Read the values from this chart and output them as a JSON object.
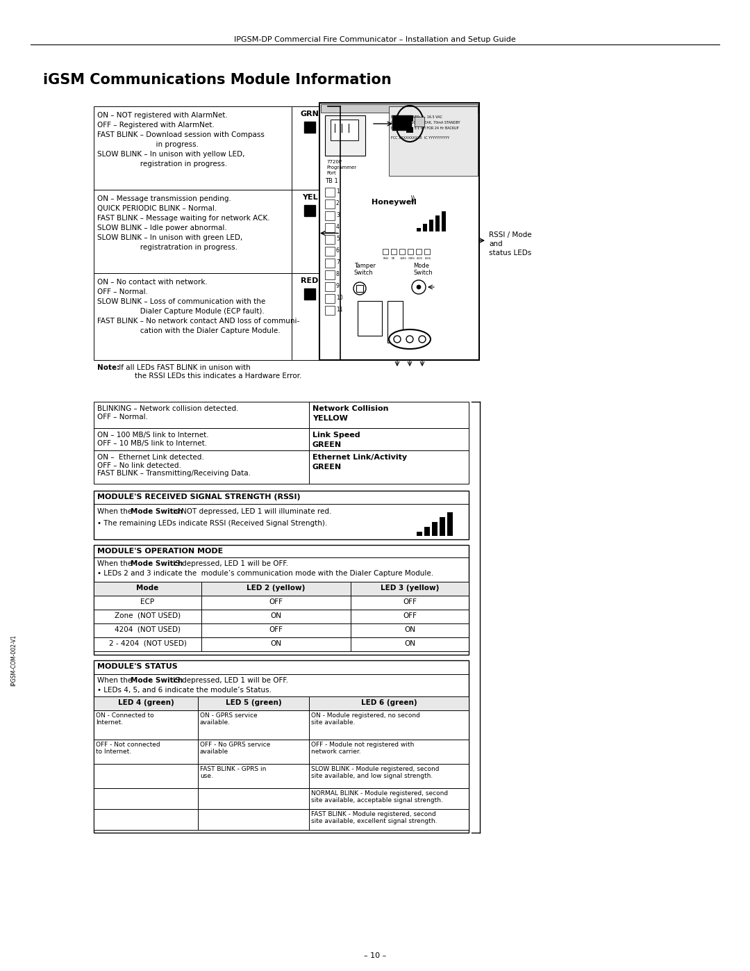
{
  "page_title": "IPGSM-DP Commercial Fire Communicator – Installation and Setup Guide",
  "section_title": "iGSM Communications Module Information",
  "page_number": "– 10 –",
  "bg_color": "#ffffff",
  "grn_rows": [
    "ON – NOT registered with AlarmNet.",
    "OFF – Registered with AlarmNet.",
    "FAST BLINK – Download session with Compass",
    "                          in progress.",
    "SLOW BLINK – In unison with yellow LED,",
    "                   registration in progress."
  ],
  "yel_rows": [
    "ON – Message transmission pending.",
    "QUICK PERIODIC BLINK – Normal.",
    "FAST BLINK – Message waiting for network ACK.",
    "SLOW BLINK – Idle power abnormal.",
    "SLOW BLINK – In unison with green LED,",
    "                   registratration in progress."
  ],
  "red_rows": [
    "ON – No contact with network.",
    "OFF – Normal.",
    "SLOW BLINK – Loss of communication with the",
    "                   Dialer Capture Module (ECP fault).",
    "FAST BLINK – No network contact AND loss of communi-",
    "                   cation with the Dialer Capture Module."
  ],
  "note_bold": "Note:",
  "note_rest": " If all LEDs FAST BLINK in unison with\n        the RSSI LEDs this indicates a Hardware Error.",
  "network_collision_label": "BLINKING – Network collision detected.\nOFF – Normal.",
  "network_collision_led_line1": "Network Collision",
  "network_collision_led_line2": "YELLOW",
  "link_speed_label": "ON – 100 MB/S link to Internet.\nOFF – 10 MB/S link to Internet.",
  "link_speed_led_line1": "Link Speed",
  "link_speed_led_line2": "GREEN",
  "ethernet_label": "ON –  Ethernet Link detected.\nOFF – No link detected.\nFAST BLINK – Transmitting/Receiving Data.",
  "ethernet_led_line1": "Ethernet Link/Activity",
  "ethernet_led_line2": "GREEN",
  "rssi_title": "MODULE'S RECEIVED SIGNAL STRENGTH (RSSI)",
  "rssi_text1_plain": "When the ",
  "rssi_text1_bold": "Mode Switch",
  "rssi_text1_rest": " is NOT depressed, LED 1 will illuminate red.",
  "rssi_text2": "• The remaining LEDs indicate RSSI (Received Signal Strength).",
  "opmode_title": "MODULE'S OPERATION MODE",
  "opmode_text1_plain": "When the ",
  "opmode_text1_bold": "Mode Switch",
  "opmode_text1_rest": " IS depressed, LED 1 will be OFF.",
  "opmode_text2": "• LEDs 2 and 3 indicate the  module’s communication mode with the Dialer Capture Module.",
  "opmode_table_headers": [
    "Mode",
    "LED 2 (yellow)",
    "LED 3 (yellow)"
  ],
  "opmode_table_rows": [
    [
      "ECP",
      "OFF",
      "OFF"
    ],
    [
      "Zone  (NOT USED)",
      "ON",
      "OFF"
    ],
    [
      "4204  (NOT USED)",
      "OFF",
      "ON"
    ],
    [
      "2 - 4204  (NOT USED)",
      "ON",
      "ON"
    ]
  ],
  "status_title": "MODULE'S STATUS",
  "status_text1_plain": "When the ",
  "status_text1_bold": "Mode Switch",
  "status_text1_rest": " IS depressed, LED 1 will be OFF.",
  "status_text2": "• LEDs 4, 5, and 6 indicate the module’s Status.",
  "status_table_headers": [
    "LED 4 (green)",
    "LED 5 (green)",
    "LED 6 (green)"
  ],
  "status_col1": [
    "ON - Connected to\nInternet.",
    "OFF - Not connected\nto Internet.",
    "",
    "",
    ""
  ],
  "status_col2": [
    "ON - GPRS service\navailable.",
    "OFF - No GPRS service\navailable",
    "FAST BLINK - GPRS in\nuse.",
    "",
    ""
  ],
  "status_col3": [
    "ON - Module registered, no second\nsite available.",
    "OFF - Module not registered with\nnetwork carrier.",
    "SLOW BLINK - Module registered, second\nsite available, and low signal strength.",
    "NORMAL BLINK - Module registered, second\nsite available, acceptable signal strength.",
    "FAST BLINK - Module registered, second\nsite available, excellent signal strength."
  ],
  "side_label": "IPGSM-COM-002-V1"
}
